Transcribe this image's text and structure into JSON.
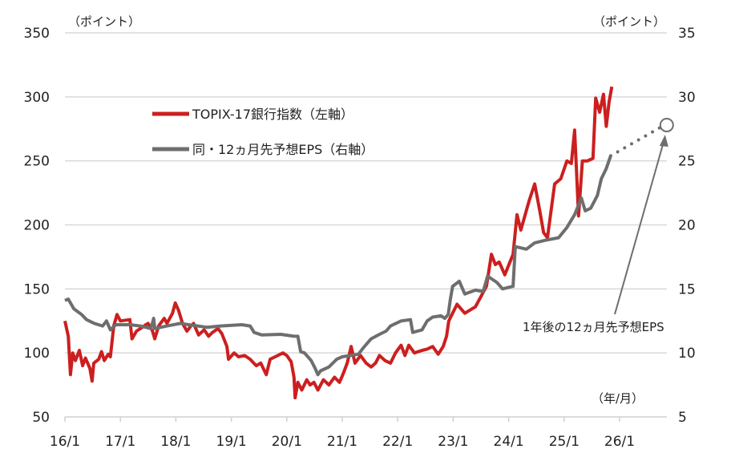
{
  "chart_data": {
    "type": "line",
    "title": "",
    "left_axis_unit": "（ポイント）",
    "right_axis_unit": "（ポイント）",
    "x_axis_unit": "（年/月）",
    "ylim_left": [
      50,
      350
    ],
    "ylim_right": [
      5,
      35
    ],
    "yticks_left": [
      "50",
      "100",
      "150",
      "200",
      "250",
      "300",
      "350"
    ],
    "yticks_right": [
      "5",
      "10",
      "15",
      "20",
      "25",
      "30",
      "35"
    ],
    "xlim": [
      2016.0,
      2026.85
    ],
    "xticks": [
      {
        "label": "16/1",
        "x": 2016
      },
      {
        "label": "17/1",
        "x": 2017
      },
      {
        "label": "18/1",
        "x": 2018
      },
      {
        "label": "19/1",
        "x": 2019
      },
      {
        "label": "20/1",
        "x": 2020
      },
      {
        "label": "21/1",
        "x": 2021
      },
      {
        "label": "22/1",
        "x": 2022
      },
      {
        "label": "23/1",
        "x": 2023
      },
      {
        "label": "24/1",
        "x": 2024
      },
      {
        "label": "25/1",
        "x": 2025
      },
      {
        "label": "26/1",
        "x": 2026
      }
    ],
    "grid": "horizontal",
    "legend_placement": "top-left",
    "series": [
      {
        "name": "TOPIX-17銀行指数（左軸）",
        "axis": "left",
        "color": "#cc1f1f",
        "x": [
          2016.0,
          2016.06,
          2016.1,
          2016.14,
          2016.19,
          2016.26,
          2016.32,
          2016.37,
          2016.45,
          2016.49,
          2016.52,
          2016.61,
          2016.66,
          2016.71,
          2016.78,
          2016.82,
          2016.88,
          2016.94,
          2017.0,
          2017.17,
          2017.21,
          2017.29,
          2017.36,
          2017.46,
          2017.5,
          2017.58,
          2017.62,
          2017.69,
          2017.79,
          2017.84,
          2017.94,
          2017.99,
          2018.05,
          2018.12,
          2018.2,
          2018.27,
          2018.32,
          2018.41,
          2018.51,
          2018.59,
          2018.66,
          2018.76,
          2018.83,
          2018.92,
          2018.95,
          2019.05,
          2019.13,
          2019.24,
          2019.34,
          2019.45,
          2019.53,
          2019.63,
          2019.7,
          2019.79,
          2019.93,
          2020.0,
          2020.08,
          2020.13,
          2020.15,
          2020.2,
          2020.27,
          2020.36,
          2020.42,
          2020.49,
          2020.56,
          2020.66,
          2020.76,
          2020.86,
          2020.95,
          2021.01,
          2021.09,
          2021.16,
          2021.23,
          2021.33,
          2021.43,
          2021.52,
          2021.6,
          2021.67,
          2021.77,
          2021.87,
          2021.96,
          2022.06,
          2022.13,
          2022.2,
          2022.3,
          2022.44,
          2022.53,
          2022.63,
          2022.73,
          2022.82,
          2022.88,
          2022.92,
          2023.07,
          2023.21,
          2023.4,
          2023.5,
          2023.6,
          2023.69,
          2023.76,
          2023.83,
          2023.93,
          2024.08,
          2024.15,
          2024.22,
          2024.37,
          2024.47,
          2024.56,
          2024.63,
          2024.7,
          2024.83,
          2024.94,
          2025.05,
          2025.13,
          2025.19,
          2025.23,
          2025.26,
          2025.33,
          2025.42,
          2025.52,
          2025.57,
          2025.64,
          2025.71,
          2025.76,
          2025.81,
          2025.86
        ],
        "values": [
          125,
          113,
          83,
          100,
          94,
          102,
          90,
          96,
          88,
          78,
          92,
          95,
          101,
          94,
          99,
          97,
          121,
          130,
          125,
          126,
          111,
          117,
          119,
          122,
          123,
          117,
          111,
          121,
          127,
          123,
          131,
          139,
          133,
          123,
          117,
          121,
          123,
          114,
          118,
          113,
          116,
          119,
          115,
          105,
          95,
          100,
          97,
          98,
          95,
          90,
          92,
          83,
          95,
          97,
          100,
          98,
          93,
          81,
          65,
          77,
          71,
          79,
          75,
          77,
          71,
          79,
          75,
          81,
          77,
          83,
          92,
          105,
          92,
          98,
          92,
          89,
          92,
          98,
          94,
          92,
          100,
          106,
          98,
          106,
          100,
          102,
          103,
          105,
          99,
          105,
          113,
          125,
          138,
          131,
          136,
          144,
          152,
          177,
          169,
          171,
          161,
          177,
          208,
          196,
          219,
          232,
          211,
          194,
          190,
          232,
          236,
          250,
          248,
          274,
          236,
          207,
          250,
          250,
          252,
          299,
          288,
          302,
          277,
          296,
          308
        ]
      },
      {
        "name": "同・12ヵ月先予想EPS（右軸）",
        "axis": "right",
        "color": "#6e6e6e",
        "x": [
          2016.0,
          2016.06,
          2016.16,
          2016.3,
          2016.39,
          2016.53,
          2016.68,
          2016.75,
          2016.82,
          2016.92,
          2017.17,
          2017.36,
          2017.55,
          2017.6,
          2017.62,
          2017.84,
          2018.08,
          2018.23,
          2018.56,
          2018.8,
          2019.19,
          2019.34,
          2019.41,
          2019.55,
          2019.89,
          2020.13,
          2020.2,
          2020.25,
          2020.32,
          2020.44,
          2020.51,
          2020.56,
          2020.61,
          2020.76,
          2020.9,
          2021.0,
          2021.29,
          2021.38,
          2021.52,
          2021.67,
          2021.79,
          2021.87,
          2022.06,
          2022.23,
          2022.27,
          2022.44,
          2022.53,
          2022.63,
          2022.78,
          2022.85,
          2022.91,
          2022.95,
          2022.99,
          2023.11,
          2023.21,
          2023.4,
          2023.54,
          2023.62,
          2023.79,
          2023.89,
          2024.08,
          2024.12,
          2024.32,
          2024.47,
          2024.66,
          2024.9,
          2025.05,
          2025.19,
          2025.31,
          2025.38,
          2025.48,
          2025.6,
          2025.67,
          2025.76,
          2025.84
        ],
        "values": [
          14.1,
          14.2,
          13.45,
          13.0,
          12.6,
          12.3,
          12.1,
          12.5,
          11.8,
          12.2,
          12.2,
          12.1,
          11.9,
          12.7,
          11.9,
          12.1,
          12.3,
          12.2,
          12.0,
          12.1,
          12.2,
          12.1,
          11.6,
          11.4,
          11.45,
          11.3,
          11.3,
          10.1,
          10.0,
          9.4,
          8.8,
          8.3,
          8.6,
          8.9,
          9.5,
          9.7,
          9.9,
          10.4,
          11.1,
          11.45,
          11.7,
          12.1,
          12.5,
          12.6,
          11.6,
          11.8,
          12.5,
          12.8,
          12.9,
          12.7,
          13.0,
          14.2,
          15.2,
          15.6,
          14.6,
          14.9,
          14.8,
          16.0,
          15.5,
          15.0,
          15.2,
          18.3,
          18.1,
          18.6,
          18.8,
          19.0,
          19.8,
          20.8,
          22.1,
          21.1,
          21.3,
          22.3,
          23.6,
          24.4,
          25.4
        ]
      }
    ],
    "forecast": {
      "label": "1年後の12ヵ月先予想EPS",
      "axis": "right",
      "from": {
        "x": 2025.84,
        "value": 25.4
      },
      "to": {
        "x": 2026.85,
        "value": 27.8
      },
      "color": "#6e6e6e"
    }
  }
}
